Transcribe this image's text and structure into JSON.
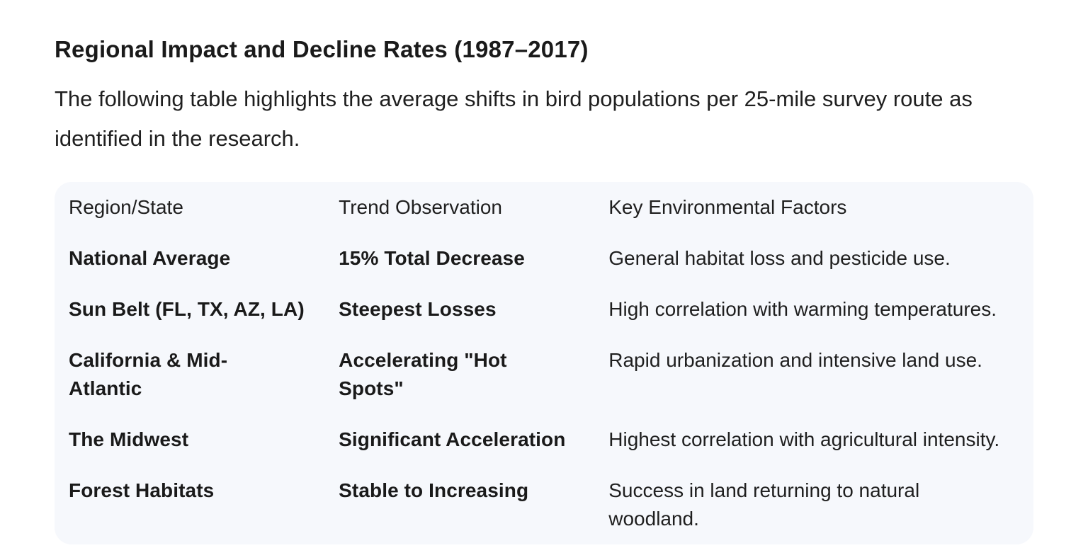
{
  "page": {
    "heading": "Regional Impact and Decline Rates (1987–2017)",
    "intro": "The following table highlights the average shifts in bird populations per 25-mile survey route as identified in the research."
  },
  "colors": {
    "page_background": "#ffffff",
    "card_background": "#f6f8fc",
    "text": "#1f1f1f"
  },
  "table": {
    "columns": [
      "Region/State",
      "Trend Observation",
      "Key Environmental Factors"
    ],
    "rows": [
      {
        "region": "National Average",
        "trend": "15% Total Decrease",
        "factors": "General habitat loss and pesticide use."
      },
      {
        "region": "Sun Belt (FL, TX, AZ, LA)",
        "trend": "Steepest Losses",
        "factors": "High correlation with warming temperatures."
      },
      {
        "region": "California & Mid-\nAtlantic",
        "trend": "Accelerating \"Hot\nSpots\"",
        "factors": "Rapid urbanization and intensive land use."
      },
      {
        "region": "The Midwest",
        "trend": "Significant Acceleration",
        "factors": "Highest correlation with agricultural intensity."
      },
      {
        "region": "Forest Habitats",
        "trend": "Stable to Increasing",
        "factors": "Success in land returning to natural\nwoodland."
      }
    ]
  }
}
